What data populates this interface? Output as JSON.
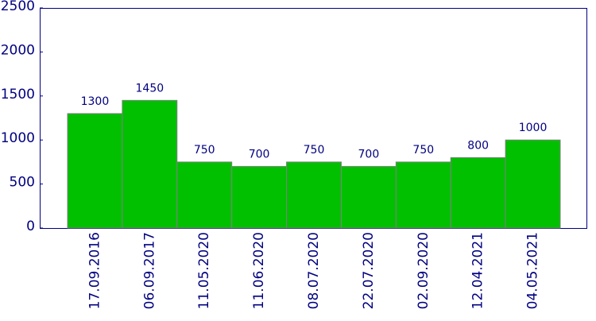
{
  "chart_data": {
    "type": "bar",
    "categories": [
      "17.09.2016",
      "06.09.2017",
      "11.05.2020",
      "11.06.2020",
      "08.07.2020",
      "22.07.2020",
      "02.09.2020",
      "12.04.2021",
      "04.05.2021"
    ],
    "values": [
      1300,
      1450,
      750,
      700,
      750,
      700,
      750,
      800,
      1000
    ],
    "color": "#00c000",
    "ylim": [
      0,
      2500
    ],
    "yticks": [
      0,
      500,
      1000,
      1500,
      2000,
      2500
    ],
    "grid": false
  }
}
